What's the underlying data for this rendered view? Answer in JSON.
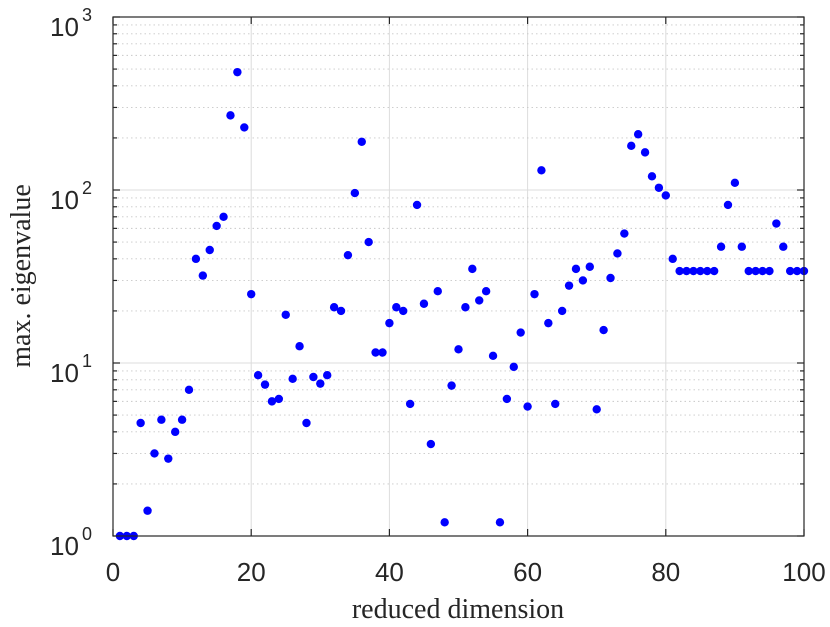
{
  "chart_data": {
    "type": "scatter",
    "xlabel": "reduced dimension",
    "ylabel": "max. eigenvalue",
    "xlim": [
      0,
      100
    ],
    "ylim": [
      1,
      1000
    ],
    "yscale": "log",
    "grid": true,
    "marker_color": "#0000ff",
    "x_ticks": [
      "0",
      "20",
      "40",
      "60",
      "80",
      "100"
    ],
    "y_ticks": [
      {
        "base": "10",
        "exp": "0"
      },
      {
        "base": "10",
        "exp": "1"
      },
      {
        "base": "10",
        "exp": "2"
      },
      {
        "base": "10",
        "exp": "3"
      }
    ],
    "x": [
      1,
      2,
      3,
      4,
      5,
      6,
      7,
      8,
      9,
      10,
      11,
      12,
      13,
      14,
      15,
      16,
      17,
      18,
      19,
      20,
      21,
      22,
      23,
      24,
      25,
      26,
      27,
      28,
      29,
      30,
      31,
      32,
      33,
      34,
      35,
      36,
      37,
      38,
      39,
      40,
      41,
      42,
      43,
      44,
      45,
      46,
      47,
      48,
      49,
      50,
      51,
      52,
      53,
      54,
      55,
      56,
      57,
      58,
      59,
      60,
      61,
      62,
      63,
      64,
      65,
      66,
      67,
      68,
      69,
      70,
      71,
      72,
      73,
      74,
      75,
      76,
      77,
      78,
      79,
      80,
      81,
      82,
      83,
      84,
      85,
      86,
      87,
      88,
      89,
      90,
      91,
      92,
      93,
      94,
      95,
      96,
      97,
      98,
      99,
      100
    ],
    "y": [
      1.0,
      1.0,
      1.0,
      4.5,
      1.4,
      3.0,
      4.7,
      2.8,
      4.0,
      4.7,
      7.0,
      40,
      32,
      45,
      62,
      70,
      270,
      480,
      230,
      25,
      8.5,
      7.5,
      6.0,
      6.2,
      19,
      8.1,
      12.5,
      4.5,
      8.3,
      7.6,
      8.5,
      21,
      20,
      42,
      96,
      190,
      50,
      11.5,
      11.5,
      17,
      21,
      20,
      5.8,
      82,
      22,
      3.4,
      26,
      1.2,
      7.4,
      12,
      21,
      35,
      23,
      26,
      11,
      1.2,
      6.2,
      9.5,
      15,
      5.6,
      25,
      130,
      17,
      5.8,
      20,
      28,
      35,
      30,
      36,
      5.4,
      15.5,
      31,
      43,
      56,
      180,
      210,
      165,
      120,
      103,
      93,
      40,
      34,
      34,
      34,
      34,
      34,
      34,
      47,
      82,
      110,
      47,
      34,
      34,
      34,
      34,
      64,
      47,
      34,
      34,
      34
    ]
  }
}
